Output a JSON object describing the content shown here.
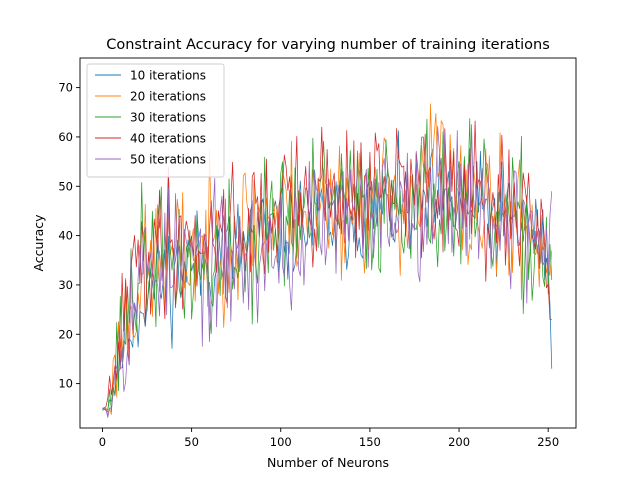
{
  "chart_data": {
    "type": "line",
    "title": "Constraint Accuracy for varying number of training iterations",
    "xlabel": "Number of Neurons",
    "ylabel": "Accuracy",
    "xlim": [
      -12.6,
      265.6
    ],
    "ylim": [
      1.0,
      76.0
    ],
    "xticks": [
      0,
      50,
      100,
      150,
      200,
      250
    ],
    "yticks": [
      10,
      20,
      30,
      40,
      50,
      60,
      70
    ],
    "grid": false,
    "legend_position": "top-left",
    "x_start": 0,
    "x_end": 252,
    "series": [
      {
        "name": "10 iterations",
        "color": "#1f77b4",
        "knots": [
          [
            0,
            5.0
          ],
          [
            3,
            5.5
          ],
          [
            6,
            9
          ],
          [
            10,
            16
          ],
          [
            15,
            22
          ],
          [
            20,
            26
          ],
          [
            30,
            31
          ],
          [
            45,
            33
          ],
          [
            60,
            35
          ],
          [
            80,
            38
          ],
          [
            100,
            41
          ],
          [
            120,
            43
          ],
          [
            150,
            45
          ],
          [
            180,
            46
          ],
          [
            200,
            46
          ],
          [
            220,
            44
          ],
          [
            240,
            41
          ],
          [
            250,
            36
          ],
          [
            252,
            13
          ]
        ],
        "amp": 5.5,
        "seed": 11
      },
      {
        "name": "20 iterations",
        "color": "#ff7f0e",
        "knots": [
          [
            0,
            5.0
          ],
          [
            3,
            5.0
          ],
          [
            6,
            10
          ],
          [
            10,
            20
          ],
          [
            15,
            26
          ],
          [
            20,
            30
          ],
          [
            30,
            34
          ],
          [
            45,
            36
          ],
          [
            60,
            38
          ],
          [
            80,
            42
          ],
          [
            100,
            45
          ],
          [
            120,
            46
          ],
          [
            150,
            47
          ],
          [
            180,
            48
          ],
          [
            186,
            58
          ],
          [
            200,
            46
          ],
          [
            220,
            44
          ],
          [
            240,
            41
          ],
          [
            250,
            36
          ],
          [
            252,
            37
          ]
        ],
        "amp": 7,
        "seed": 23
      },
      {
        "name": "30 iterations",
        "color": "#2ca02c",
        "knots": [
          [
            0,
            4.8
          ],
          [
            3,
            5.0
          ],
          [
            6,
            9
          ],
          [
            10,
            18
          ],
          [
            15,
            27
          ],
          [
            20,
            33
          ],
          [
            30,
            37
          ],
          [
            45,
            34
          ],
          [
            60,
            33
          ],
          [
            80,
            37
          ],
          [
            100,
            43
          ],
          [
            120,
            45
          ],
          [
            150,
            46
          ],
          [
            175,
            50
          ],
          [
            200,
            45
          ],
          [
            220,
            43
          ],
          [
            240,
            40
          ],
          [
            250,
            36
          ],
          [
            252,
            31
          ]
        ],
        "amp": 7.5,
        "seed": 37
      },
      {
        "name": "40 iterations",
        "color": "#d62728",
        "knots": [
          [
            0,
            5.2
          ],
          [
            3,
            5.5
          ],
          [
            6,
            9
          ],
          [
            10,
            19
          ],
          [
            15,
            27
          ],
          [
            20,
            34
          ],
          [
            30,
            38
          ],
          [
            45,
            39
          ],
          [
            60,
            40
          ],
          [
            80,
            42
          ],
          [
            100,
            46
          ],
          [
            120,
            48
          ],
          [
            150,
            49
          ],
          [
            175,
            50
          ],
          [
            200,
            47
          ],
          [
            220,
            45
          ],
          [
            240,
            41
          ],
          [
            250,
            37
          ],
          [
            252,
            23
          ]
        ],
        "amp": 7,
        "seed": 41
      },
      {
        "name": "50 iterations",
        "color": "#9467bd",
        "knots": [
          [
            0,
            5.0
          ],
          [
            3,
            5.5
          ],
          [
            6,
            9
          ],
          [
            10,
            18
          ],
          [
            15,
            25
          ],
          [
            20,
            31
          ],
          [
            30,
            35
          ],
          [
            45,
            35
          ],
          [
            60,
            34
          ],
          [
            80,
            35
          ],
          [
            100,
            37
          ],
          [
            120,
            42
          ],
          [
            150,
            45
          ],
          [
            175,
            47
          ],
          [
            200,
            50
          ],
          [
            220,
            45
          ],
          [
            240,
            41
          ],
          [
            250,
            38
          ],
          [
            252,
            49
          ]
        ],
        "amp": 7,
        "seed": 53
      }
    ]
  }
}
